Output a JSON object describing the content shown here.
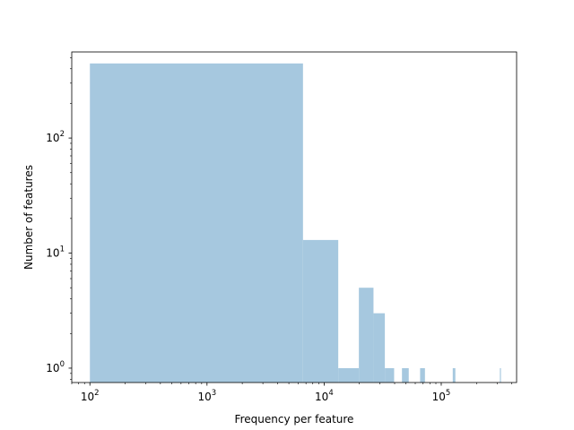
{
  "chart_data": {
    "type": "bar",
    "title": "",
    "xlabel": "Frequency per feature",
    "ylabel": "Number of features",
    "x_scale": "log",
    "y_scale": "log",
    "xlim": [
      70,
      440000
    ],
    "ylim": [
      0.75,
      560
    ],
    "grid": false,
    "legend": "none",
    "bar_color": "#a6c8df",
    "x_ticks": [
      {
        "value": 100,
        "base": "10",
        "exp": "2"
      },
      {
        "value": 1000,
        "base": "10",
        "exp": "3"
      },
      {
        "value": 10000,
        "base": "10",
        "exp": "4"
      },
      {
        "value": 100000,
        "base": "10",
        "exp": "5"
      }
    ],
    "y_ticks": [
      {
        "value": 1,
        "base": "10",
        "exp": "0"
      },
      {
        "value": 10,
        "base": "10",
        "exp": "1"
      },
      {
        "value": 100,
        "base": "10",
        "exp": "2"
      }
    ],
    "bins": [
      {
        "x0": 100,
        "x1": 6600,
        "count": 445
      },
      {
        "x0": 6600,
        "x1": 13200,
        "count": 13
      },
      {
        "x0": 13200,
        "x1": 19800,
        "count": 1
      },
      {
        "x0": 19800,
        "x1": 26400,
        "count": 5
      },
      {
        "x0": 26400,
        "x1": 33000,
        "count": 3
      },
      {
        "x0": 33000,
        "x1": 39600,
        "count": 1
      },
      {
        "x0": 46200,
        "x1": 52800,
        "count": 1
      },
      {
        "x0": 66000,
        "x1": 72600,
        "count": 1
      },
      {
        "x0": 125400,
        "x1": 132000,
        "count": 1
      },
      {
        "x0": 316800,
        "x1": 323400,
        "count": 1
      }
    ]
  }
}
